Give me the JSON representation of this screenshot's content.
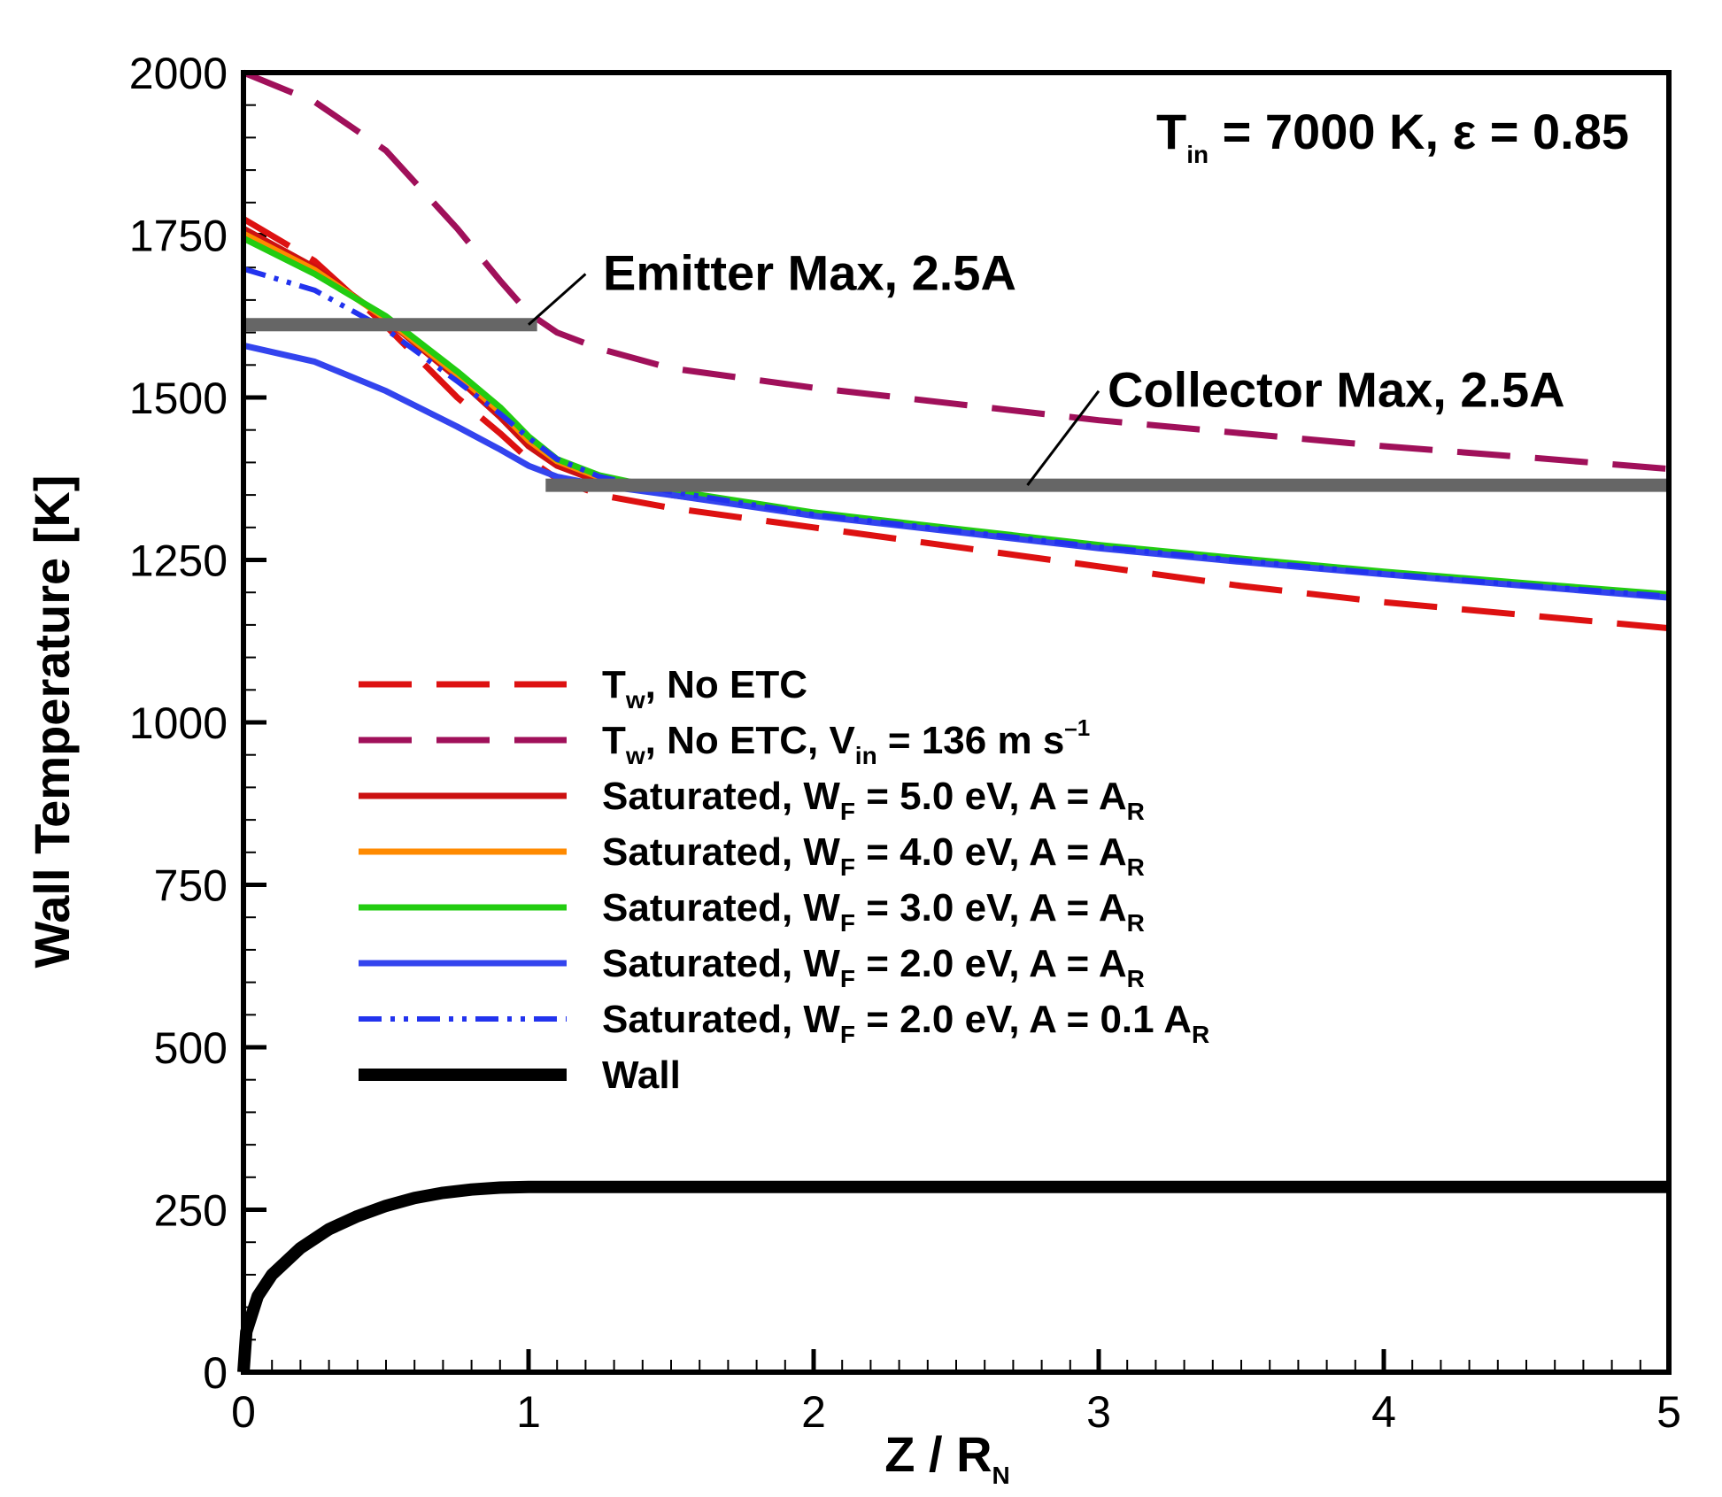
{
  "chart_data": {
    "type": "line",
    "xlabel": "Z / R",
    "xlabel_sub": "N",
    "ylabel": "Wall Temperature [K]",
    "xlim": [
      0,
      5
    ],
    "ylim": [
      0,
      2000
    ],
    "x_ticks": [
      "0",
      "1",
      "2",
      "3",
      "4",
      "5"
    ],
    "y_ticks": [
      "0",
      "250",
      "500",
      "750",
      "1000",
      "1250",
      "1500",
      "1750",
      "2000"
    ],
    "condition": {
      "t": "T",
      "t_sub": "in",
      "rest": " = 7000 K, ε = 0.85"
    },
    "thresholds": [
      {
        "name": "Emitter Max, 2.5A",
        "value": 1612,
        "x_range": [
          0,
          1.03
        ],
        "leader_from": [
          1.0,
          1612
        ],
        "leader_to": [
          1.2,
          1690
        ],
        "label_pos": [
          1.23,
          1690
        ],
        "color": "#666666"
      },
      {
        "name": "Collector Max, 2.5A",
        "value": 1365,
        "x_range": [
          1.06,
          5
        ],
        "leader_from": [
          2.75,
          1365
        ],
        "leader_to": [
          3.0,
          1510
        ],
        "label_pos": [
          3.0,
          1510
        ],
        "color": "#666666"
      }
    ],
    "series": [
      {
        "id": "tw-no-etc",
        "label": {
          "main": "T",
          "sub": "w",
          "rest": ", No ETC"
        },
        "color": "#dd1111",
        "dash": "dashed",
        "width": 7,
        "x": [
          0,
          0.25,
          0.5,
          0.75,
          0.9,
          1.0,
          1.1,
          1.25,
          1.5,
          2,
          2.5,
          3,
          3.5,
          4,
          4.5,
          5
        ],
        "y": [
          1775,
          1710,
          1610,
          1500,
          1445,
          1405,
          1375,
          1350,
          1330,
          1300,
          1270,
          1240,
          1210,
          1185,
          1165,
          1145
        ]
      },
      {
        "id": "tw-no-etc-vin",
        "label": {
          "main": "T",
          "sub": "w",
          "rest": ", No ETC, V",
          "sub2": "in",
          "rest2": " = 136 m s",
          "sup": "–1"
        },
        "color": "#a0105a",
        "dash": "dashed",
        "width": 7,
        "x": [
          0,
          0.25,
          0.5,
          0.75,
          0.9,
          1.0,
          1.1,
          1.25,
          1.5,
          2,
          2.5,
          3,
          3.5,
          4,
          4.5,
          5
        ],
        "y": [
          2000,
          1955,
          1880,
          1760,
          1680,
          1630,
          1600,
          1575,
          1545,
          1515,
          1490,
          1465,
          1445,
          1425,
          1408,
          1390
        ]
      },
      {
        "id": "sat-wf5",
        "label": {
          "main": "Saturated, W",
          "sub": "F",
          "rest": " = 5.0 eV, A = A",
          "sub2": "R"
        },
        "color": "#cc1111",
        "dash": "solid",
        "width": 7,
        "x": [
          0,
          0.25,
          0.5,
          0.75,
          0.9,
          1.0,
          1.1,
          1.25,
          1.5,
          2,
          2.5,
          3,
          3.5,
          4,
          4.5,
          5
        ],
        "y": [
          1760,
          1700,
          1620,
          1530,
          1470,
          1425,
          1395,
          1370,
          1350,
          1320,
          1295,
          1270,
          1250,
          1230,
          1212,
          1195
        ]
      },
      {
        "id": "sat-wf4",
        "label": {
          "main": "Saturated, W",
          "sub": "F",
          "rest": " = 4.0 eV, A = A",
          "sub2": "R"
        },
        "color": "#ff8a00",
        "dash": "solid",
        "width": 7,
        "x": [
          0,
          0.25,
          0.5,
          0.75,
          0.9,
          1.0,
          1.1,
          1.25,
          1.5,
          2,
          2.5,
          3,
          3.5,
          4,
          4.5,
          5
        ],
        "y": [
          1752,
          1696,
          1621,
          1535,
          1478,
          1434,
          1402,
          1377,
          1354,
          1322,
          1297,
          1272,
          1251,
          1231,
          1213,
          1196
        ]
      },
      {
        "id": "sat-wf3",
        "label": {
          "main": "Saturated, W",
          "sub": "F",
          "rest": " = 3.0 eV, A = A",
          "sub2": "R"
        },
        "color": "#22cc11",
        "dash": "solid",
        "width": 7,
        "x": [
          0,
          0.25,
          0.5,
          0.75,
          0.9,
          1.0,
          1.1,
          1.25,
          1.5,
          2,
          2.5,
          3,
          3.5,
          4,
          4.5,
          5
        ],
        "y": [
          1745,
          1690,
          1625,
          1540,
          1485,
          1440,
          1405,
          1380,
          1357,
          1323,
          1298,
          1273,
          1252,
          1232,
          1214,
          1197
        ]
      },
      {
        "id": "sat-wf2",
        "label": {
          "main": "Saturated, W",
          "sub": "F",
          "rest": " = 2.0 eV, A = A",
          "sub2": "R"
        },
        "color": "#3344ee",
        "dash": "solid",
        "width": 7,
        "x": [
          0,
          0.25,
          0.5,
          0.75,
          0.9,
          1.0,
          1.1,
          1.25,
          1.5,
          2,
          2.5,
          3,
          3.5,
          4,
          4.5,
          5
        ],
        "y": [
          1580,
          1555,
          1510,
          1455,
          1420,
          1395,
          1378,
          1365,
          1350,
          1318,
          1293,
          1268,
          1247,
          1228,
          1210,
          1192
        ]
      },
      {
        "id": "sat-wf2-a01",
        "label": {
          "main": "Saturated, W",
          "sub": "F",
          "rest": " = 2.0 eV, A = 0.1 A",
          "sub2": "R"
        },
        "color": "#2233ee",
        "dash": "dashdotdot",
        "width": 6,
        "x": [
          0,
          0.25,
          0.5,
          0.75,
          0.9,
          1.0,
          1.1,
          1.25,
          1.5,
          2,
          2.5,
          3,
          3.5,
          4,
          4.5,
          5
        ],
        "y": [
          1698,
          1665,
          1605,
          1525,
          1475,
          1438,
          1405,
          1378,
          1355,
          1320,
          1295,
          1270,
          1249,
          1229,
          1211,
          1194
        ]
      },
      {
        "id": "wall",
        "label": {
          "main": "Wall"
        },
        "color": "#000000",
        "dash": "solid",
        "width": 14,
        "x": [
          0,
          0.01,
          0.05,
          0.1,
          0.2,
          0.3,
          0.4,
          0.5,
          0.6,
          0.7,
          0.8,
          0.9,
          1.0,
          2,
          3,
          4,
          5
        ],
        "y": [
          0,
          62,
          117,
          150,
          191,
          220,
          240,
          256,
          268,
          276,
          281,
          284,
          285,
          285,
          285,
          285,
          285
        ]
      }
    ]
  }
}
